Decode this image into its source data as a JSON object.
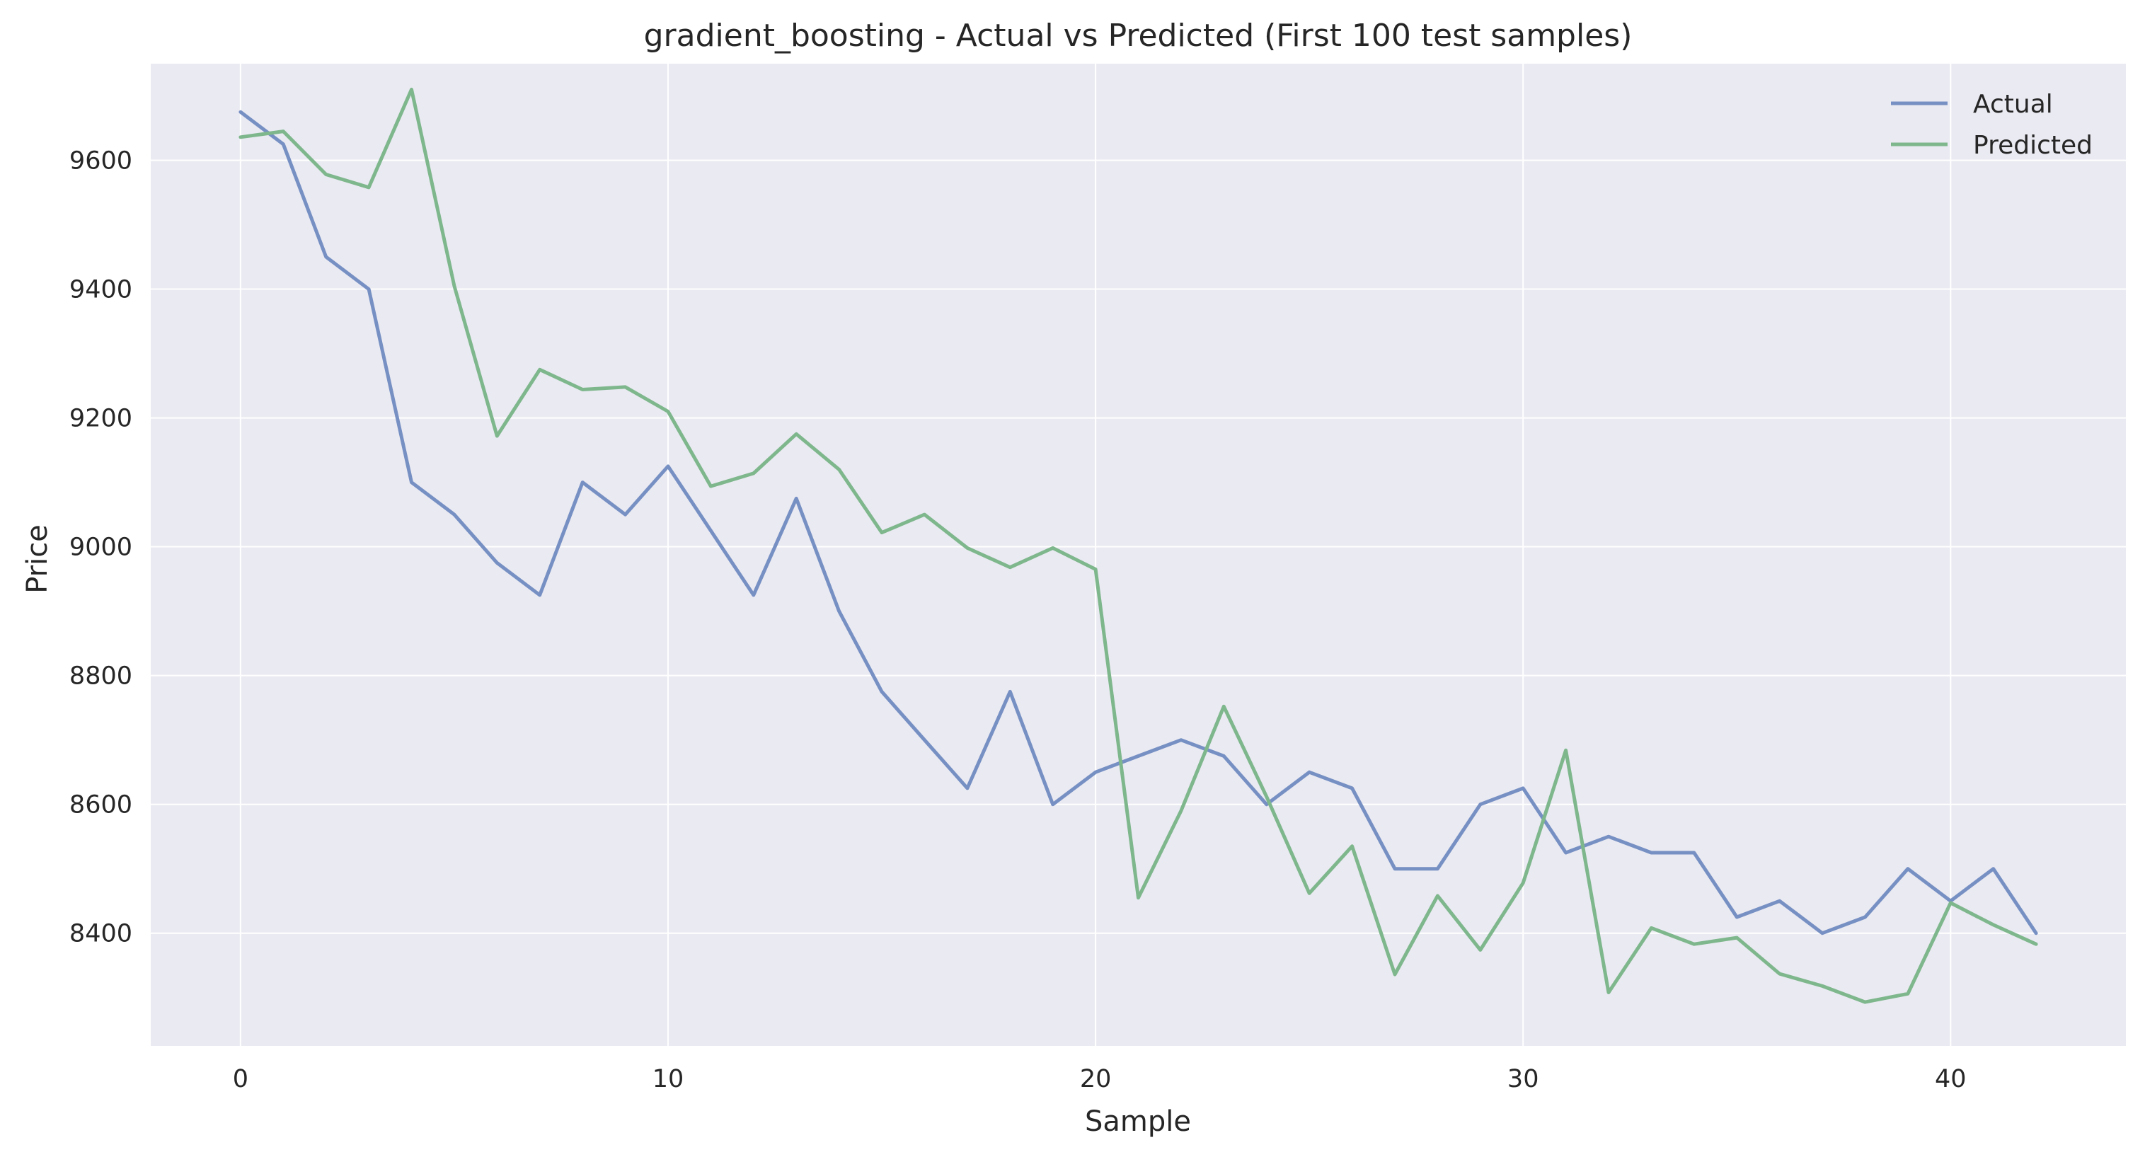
{
  "chart_data": {
    "type": "line",
    "title": "gradient_boosting - Actual vs Predicted (First 100 test samples)",
    "xlabel": "Sample",
    "ylabel": "Price",
    "xlim": [
      -2.1,
      44.1
    ],
    "ylim": [
      8225,
      9750
    ],
    "xticks": [
      0,
      10,
      20,
      30,
      40
    ],
    "xtick_labels": [
      "0",
      "10",
      "20",
      "30",
      "40"
    ],
    "yticks": [
      8400,
      8600,
      8800,
      9000,
      9200,
      9400,
      9600
    ],
    "ytick_labels": [
      "8400",
      "8600",
      "8800",
      "9000",
      "9200",
      "9400",
      "9600"
    ],
    "grid": true,
    "legend_position": "top-right",
    "x": [
      0,
      1,
      2,
      3,
      4,
      5,
      6,
      7,
      8,
      9,
      10,
      11,
      12,
      13,
      14,
      15,
      16,
      17,
      18,
      19,
      20,
      21,
      22,
      23,
      24,
      25,
      26,
      27,
      28,
      29,
      30,
      31,
      32,
      33,
      34,
      35,
      36,
      37,
      38,
      39,
      40,
      41,
      42
    ],
    "series": [
      {
        "name": "Actual",
        "color": "#7790c3",
        "values": [
          9675,
          9625,
          9450,
          9400,
          9100,
          9050,
          8975,
          8925,
          9100,
          9050,
          9125,
          9025,
          8925,
          9075,
          8900,
          8775,
          8700,
          8625,
          8775,
          8600,
          8650,
          8675,
          8700,
          8675,
          8600,
          8650,
          8625,
          8500,
          8500,
          8600,
          8625,
          8525,
          8550,
          8525,
          8525,
          8425,
          8450,
          8400,
          8425,
          8500,
          8450,
          8500,
          8400
        ]
      },
      {
        "name": "Predicted",
        "color": "#7fb78d",
        "values": [
          9636,
          9645,
          9578,
          9558,
          9710,
          9405,
          9172,
          9275,
          9244,
          9248,
          9210,
          9094,
          9114,
          9175,
          9120,
          9022,
          9050,
          8998,
          8968,
          8998,
          8965,
          8455,
          8590,
          8752,
          8612,
          8462,
          8535,
          8336,
          8458,
          8374,
          8478,
          8684,
          8308,
          8408,
          8383,
          8393,
          8337,
          8318,
          8293,
          8306,
          8447,
          8413,
          8383
        ]
      }
    ]
  }
}
